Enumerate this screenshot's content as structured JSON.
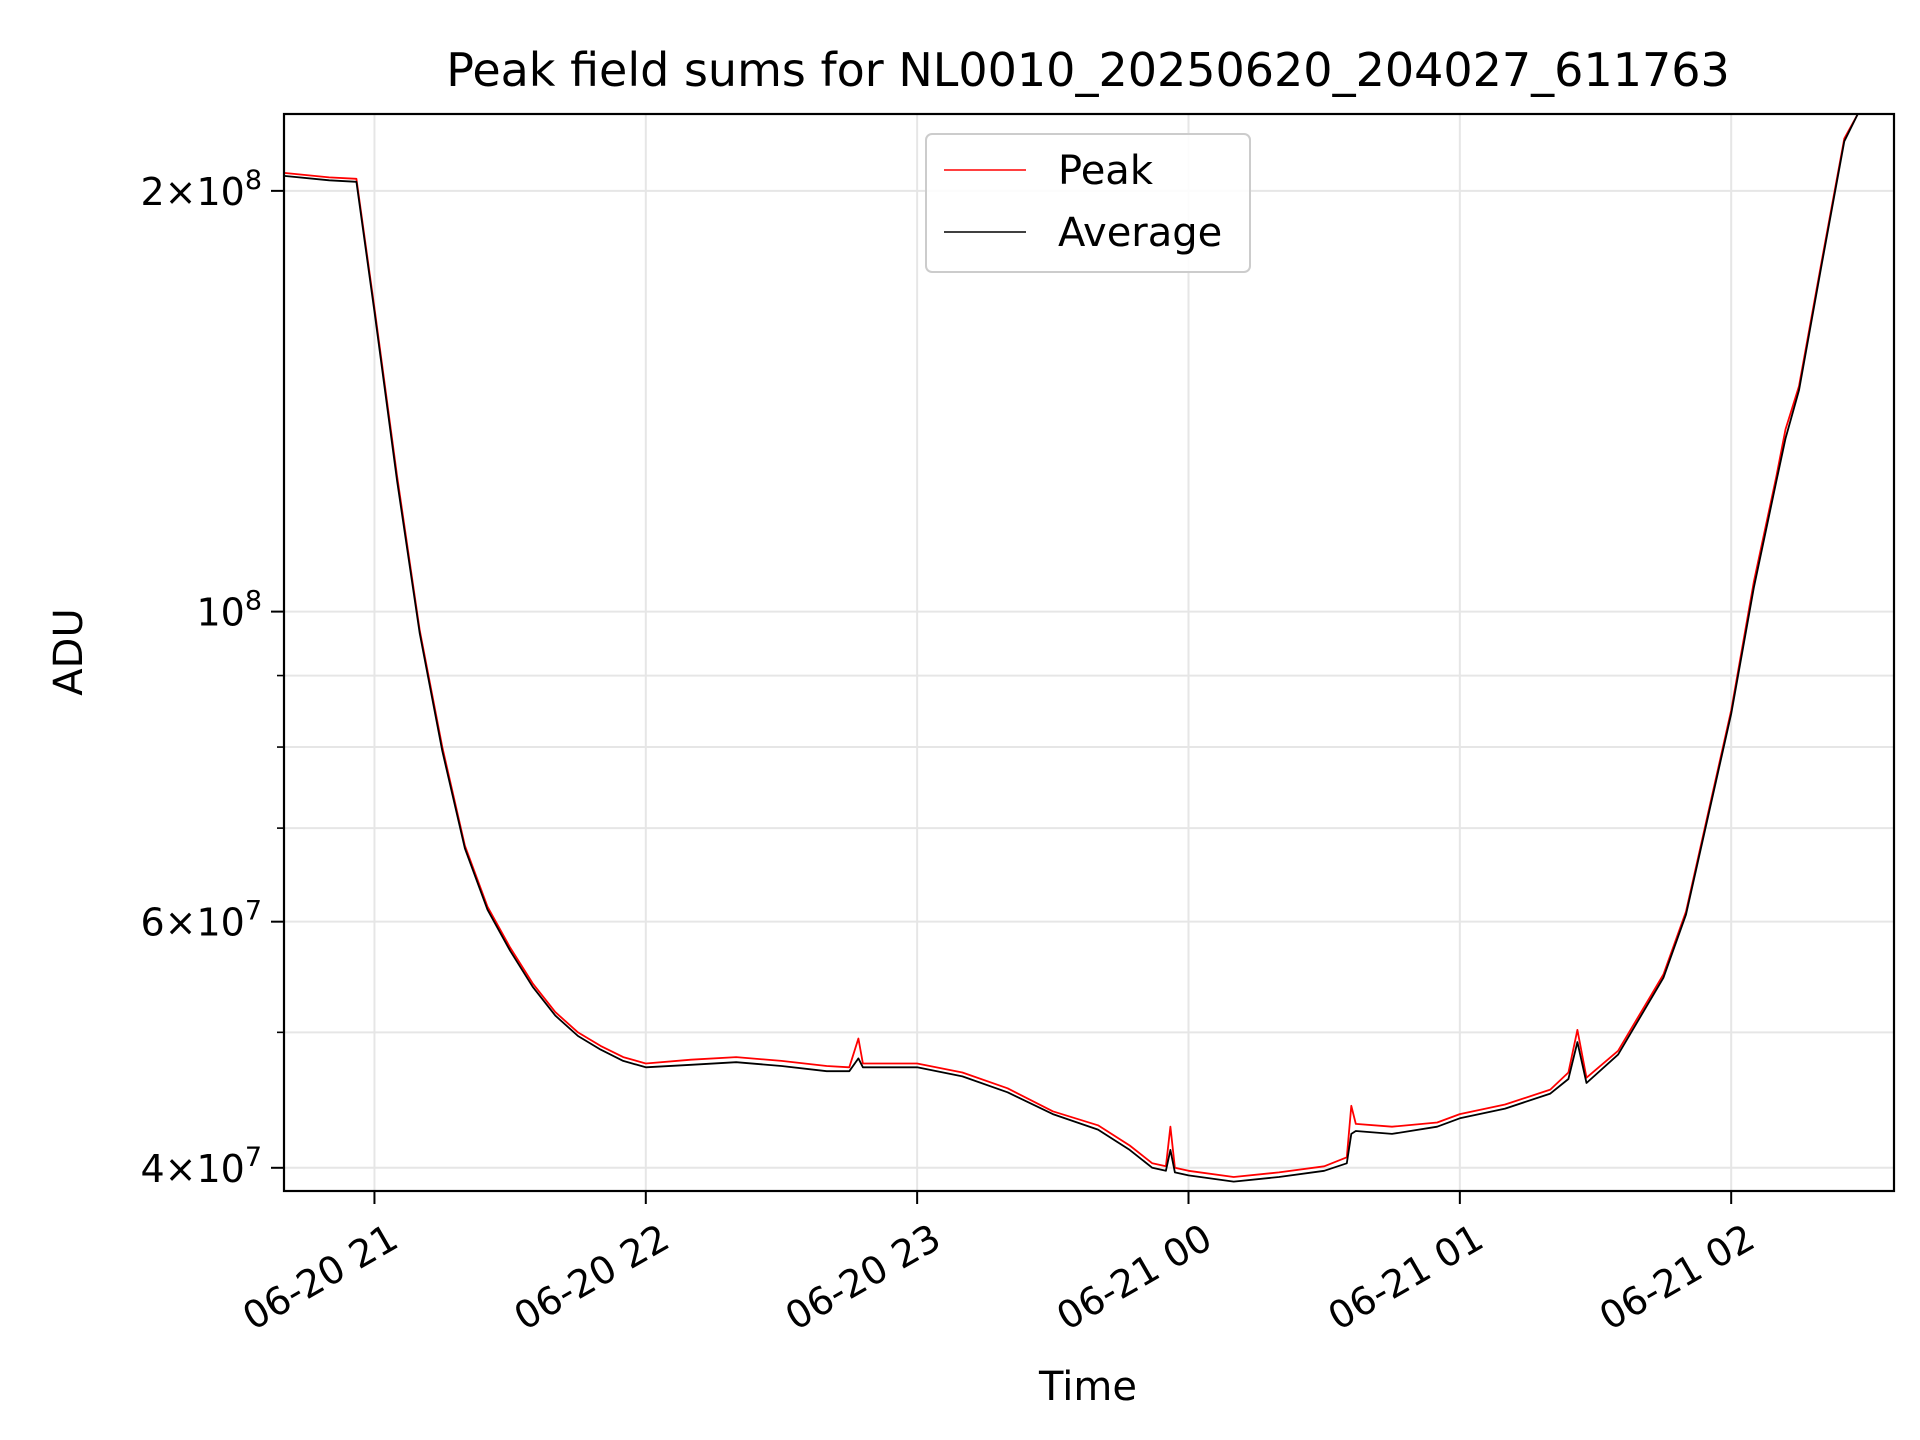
{
  "chart_data": {
    "type": "line",
    "title": "Peak field sums for NL0010_20250620_204027_611763",
    "xlabel": "Time",
    "ylabel": "ADU",
    "y_scale": "log",
    "xlim": [
      "2025-06-20 20:40",
      "2025-06-21 02:36"
    ],
    "ylim": [
      38500000,
      227000000
    ],
    "grid": true,
    "legend": "upper center",
    "x_ticks": [
      {
        "time": "2025-06-20 21:00",
        "label": "06-20 21"
      },
      {
        "time": "2025-06-20 22:00",
        "label": "06-20 22"
      },
      {
        "time": "2025-06-20 23:00",
        "label": "06-20 23"
      },
      {
        "time": "2025-06-21 00:00",
        "label": "06-21 00"
      },
      {
        "time": "2025-06-21 01:00",
        "label": "06-21 01"
      },
      {
        "time": "2025-06-21 02:00",
        "label": "06-21 02"
      }
    ],
    "y_ticks": [
      {
        "value": 40000000,
        "mantissa": "4",
        "exp": "7"
      },
      {
        "value": 60000000,
        "mantissa": "6",
        "exp": "7"
      },
      {
        "value": 100000000,
        "mantissa": "",
        "exp": "8"
      },
      {
        "value": 200000000,
        "mantissa": "2",
        "exp": "8"
      }
    ],
    "y_minor_ticks": [
      50000000,
      70000000,
      80000000,
      90000000
    ],
    "series": [
      {
        "name": "Peak",
        "color": "#ff0000",
        "points": [
          [
            "2025-06-20 20:40",
            206000000
          ],
          [
            "2025-06-20 20:50",
            204500000
          ],
          [
            "2025-06-20 20:56",
            204000000
          ],
          [
            "2025-06-20 21:00",
            165000000
          ],
          [
            "2025-06-20 21:05",
            125000000
          ],
          [
            "2025-06-20 21:10",
            97000000
          ],
          [
            "2025-06-20 21:15",
            80000000
          ],
          [
            "2025-06-20 21:20",
            68000000
          ],
          [
            "2025-06-20 21:25",
            61500000
          ],
          [
            "2025-06-20 21:30",
            57500000
          ],
          [
            "2025-06-20 21:35",
            54200000
          ],
          [
            "2025-06-20 21:40",
            51700000
          ],
          [
            "2025-06-20 21:45",
            50000000
          ],
          [
            "2025-06-20 21:50",
            48900000
          ],
          [
            "2025-06-20 21:55",
            48000000
          ],
          [
            "2025-06-20 22:00",
            47500000
          ],
          [
            "2025-06-20 22:10",
            47800000
          ],
          [
            "2025-06-20 22:20",
            48000000
          ],
          [
            "2025-06-20 22:30",
            47700000
          ],
          [
            "2025-06-20 22:40",
            47300000
          ],
          [
            "2025-06-20 22:45",
            47200000
          ],
          [
            "2025-06-20 22:47",
            49500000
          ],
          [
            "2025-06-20 22:48",
            47500000
          ],
          [
            "2025-06-20 23:00",
            47500000
          ],
          [
            "2025-06-20 23:10",
            46800000
          ],
          [
            "2025-06-20 23:20",
            45600000
          ],
          [
            "2025-06-20 23:30",
            43900000
          ],
          [
            "2025-06-20 23:40",
            42900000
          ],
          [
            "2025-06-20 23:47",
            41500000
          ],
          [
            "2025-06-20 23:52",
            40300000
          ],
          [
            "2025-06-20 23:55",
            40100000
          ],
          [
            "2025-06-20 23:56",
            42800000
          ],
          [
            "2025-06-20 23:57",
            40000000
          ],
          [
            "2025-06-21 00:00",
            39800000
          ],
          [
            "2025-06-21 00:10",
            39400000
          ],
          [
            "2025-06-21 00:20",
            39700000
          ],
          [
            "2025-06-21 00:30",
            40100000
          ],
          [
            "2025-06-21 00:35",
            40700000
          ],
          [
            "2025-06-21 00:36",
            44300000
          ],
          [
            "2025-06-21 00:37",
            43000000
          ],
          [
            "2025-06-21 00:45",
            42800000
          ],
          [
            "2025-06-21 00:55",
            43100000
          ],
          [
            "2025-06-21 01:00",
            43700000
          ],
          [
            "2025-06-21 01:10",
            44400000
          ],
          [
            "2025-06-21 01:20",
            45500000
          ],
          [
            "2025-06-21 01:24",
            46800000
          ],
          [
            "2025-06-21 01:26",
            50200000
          ],
          [
            "2025-06-21 01:28",
            46400000
          ],
          [
            "2025-06-21 01:35",
            48500000
          ],
          [
            "2025-06-21 01:45",
            55000000
          ],
          [
            "2025-06-21 01:50",
            61000000
          ],
          [
            "2025-06-21 02:00",
            85000000
          ],
          [
            "2025-06-21 02:05",
            105000000
          ],
          [
            "2025-06-21 02:10",
            125000000
          ],
          [
            "2025-06-21 02:12",
            135000000
          ],
          [
            "2025-06-21 02:15",
            145000000
          ],
          [
            "2025-06-21 02:20",
            178000000
          ],
          [
            "2025-06-21 02:25",
            218000000
          ],
          [
            "2025-06-21 02:28",
            227000000
          ]
        ]
      },
      {
        "name": "Average",
        "color": "#000000",
        "points": [
          [
            "2025-06-20 20:40",
            205000000
          ],
          [
            "2025-06-20 20:50",
            203500000
          ],
          [
            "2025-06-20 20:56",
            203000000
          ],
          [
            "2025-06-20 21:00",
            164000000
          ],
          [
            "2025-06-20 21:05",
            124000000
          ],
          [
            "2025-06-20 21:10",
            96500000
          ],
          [
            "2025-06-20 21:15",
            79500000
          ],
          [
            "2025-06-20 21:20",
            67700000
          ],
          [
            "2025-06-20 21:25",
            61200000
          ],
          [
            "2025-06-20 21:30",
            57200000
          ],
          [
            "2025-06-20 21:35",
            53900000
          ],
          [
            "2025-06-20 21:40",
            51400000
          ],
          [
            "2025-06-20 21:45",
            49700000
          ],
          [
            "2025-06-20 21:50",
            48600000
          ],
          [
            "2025-06-20 21:55",
            47700000
          ],
          [
            "2025-06-20 22:00",
            47200000
          ],
          [
            "2025-06-20 22:10",
            47400000
          ],
          [
            "2025-06-20 22:20",
            47600000
          ],
          [
            "2025-06-20 22:30",
            47300000
          ],
          [
            "2025-06-20 22:40",
            46900000
          ],
          [
            "2025-06-20 22:45",
            46900000
          ],
          [
            "2025-06-20 22:47",
            47900000
          ],
          [
            "2025-06-20 22:48",
            47200000
          ],
          [
            "2025-06-20 23:00",
            47200000
          ],
          [
            "2025-06-20 23:10",
            46500000
          ],
          [
            "2025-06-20 23:20",
            45300000
          ],
          [
            "2025-06-20 23:30",
            43700000
          ],
          [
            "2025-06-20 23:40",
            42600000
          ],
          [
            "2025-06-20 23:47",
            41200000
          ],
          [
            "2025-06-20 23:52",
            40000000
          ],
          [
            "2025-06-20 23:55",
            39800000
          ],
          [
            "2025-06-20 23:56",
            41200000
          ],
          [
            "2025-06-20 23:57",
            39700000
          ],
          [
            "2025-06-21 00:00",
            39500000
          ],
          [
            "2025-06-21 00:10",
            39100000
          ],
          [
            "2025-06-21 00:20",
            39400000
          ],
          [
            "2025-06-21 00:30",
            39800000
          ],
          [
            "2025-06-21 00:35",
            40300000
          ],
          [
            "2025-06-21 00:36",
            42300000
          ],
          [
            "2025-06-21 00:37",
            42500000
          ],
          [
            "2025-06-21 00:45",
            42300000
          ],
          [
            "2025-06-21 00:55",
            42800000
          ],
          [
            "2025-06-21 01:00",
            43400000
          ],
          [
            "2025-06-21 01:10",
            44100000
          ],
          [
            "2025-06-21 01:20",
            45200000
          ],
          [
            "2025-06-21 01:24",
            46300000
          ],
          [
            "2025-06-21 01:26",
            49200000
          ],
          [
            "2025-06-21 01:28",
            46000000
          ],
          [
            "2025-06-21 01:35",
            48200000
          ],
          [
            "2025-06-21 01:45",
            54700000
          ],
          [
            "2025-06-21 01:50",
            60700000
          ],
          [
            "2025-06-21 02:00",
            84500000
          ],
          [
            "2025-06-21 02:05",
            104000000
          ],
          [
            "2025-06-21 02:10",
            124000000
          ],
          [
            "2025-06-21 02:12",
            133000000
          ],
          [
            "2025-06-21 02:15",
            144000000
          ],
          [
            "2025-06-21 02:20",
            177000000
          ],
          [
            "2025-06-21 02:25",
            217000000
          ],
          [
            "2025-06-21 02:28",
            227000000
          ]
        ]
      }
    ]
  }
}
